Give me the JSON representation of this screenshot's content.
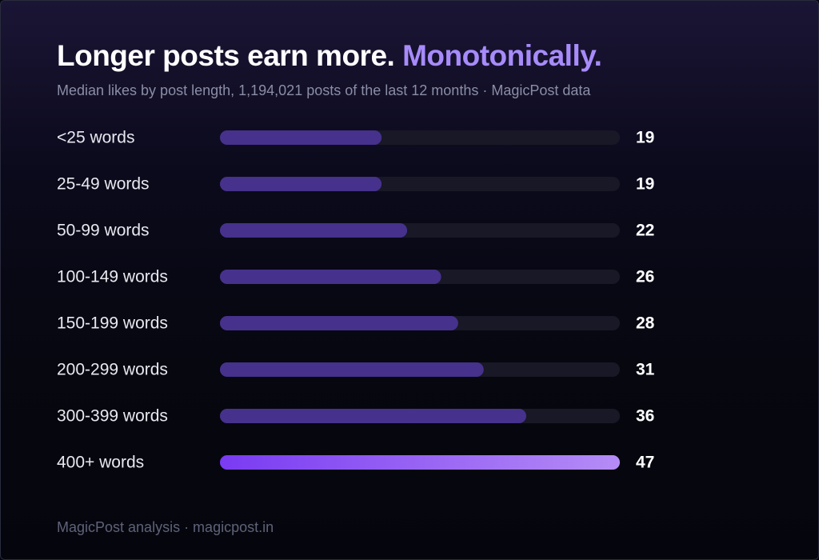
{
  "header": {
    "title_main": "Longer posts earn more.",
    "title_accent": "Monotonically.",
    "subtitle": "Median likes by post length, 1,194,021 posts of the last 12 months · MagicPost data"
  },
  "footer": {
    "text": "MagicPost analysis · magicpost.in"
  },
  "colors": {
    "bar": "#46318c",
    "bar_highlight_start": "#7a3bf2",
    "bar_highlight_end": "#b58cf6",
    "track": "#181826",
    "title_accent": "#a78bfa"
  },
  "chart_data": {
    "type": "bar",
    "orientation": "horizontal",
    "title": "Longer posts earn more. Monotonically.",
    "subtitle": "Median likes by post length, 1,194,021 posts of the last 12 months · MagicPost data",
    "categories": [
      "<25 words",
      "25-49 words",
      "50-99 words",
      "100-149 words",
      "150-199 words",
      "200-299 words",
      "300-399 words",
      "400+ words"
    ],
    "values": [
      19,
      19,
      22,
      26,
      28,
      31,
      36,
      47
    ],
    "value_labels": [
      "19",
      "19",
      "22",
      "26",
      "28",
      "31",
      "36",
      "47"
    ],
    "highlight_category": "400+ words",
    "xlim": [
      0,
      47
    ],
    "grid": false,
    "legend": "none"
  }
}
